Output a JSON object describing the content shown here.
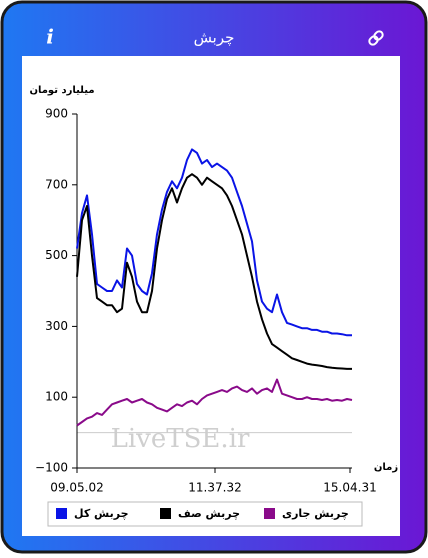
{
  "header": {
    "title": "چربش",
    "info": "i"
  },
  "watermark": "LiveTSE.ir",
  "chart_data": {
    "type": "line",
    "ylabel": "میلیارد تومان",
    "xlabel": "زمان",
    "xlim": [
      0,
      55
    ],
    "xticks": [
      {
        "value": 0,
        "label": "09.05.02"
      },
      {
        "value": 27.6,
        "label": "11.37.32"
      },
      {
        "value": 54.6,
        "label": "15.04.31"
      }
    ],
    "ylim": [
      -100,
      900
    ],
    "yticks": [
      {
        "value": -100,
        "label": "−100"
      },
      100,
      300,
      500,
      700,
      900
    ],
    "series": [
      {
        "name": "چربش کل",
        "color": "#0a14e6",
        "values": [
          520,
          620,
          670,
          560,
          420,
          410,
          400,
          400,
          430,
          410,
          520,
          500,
          420,
          400,
          390,
          450,
          560,
          630,
          680,
          710,
          690,
          720,
          770,
          800,
          790,
          760,
          770,
          750,
          760,
          750,
          740,
          720,
          680,
          640,
          590,
          540,
          430,
          370,
          350,
          340,
          390,
          340,
          310,
          305,
          300,
          295,
          295,
          290,
          290,
          285,
          285,
          280,
          280,
          278,
          275,
          275
        ]
      },
      {
        "name": "چربش صف",
        "color": "#000000",
        "values": [
          440,
          600,
          640,
          500,
          380,
          370,
          360,
          360,
          340,
          350,
          480,
          440,
          370,
          340,
          340,
          400,
          520,
          600,
          660,
          690,
          650,
          690,
          720,
          730,
          720,
          700,
          720,
          710,
          700,
          690,
          670,
          640,
          600,
          560,
          500,
          440,
          370,
          320,
          280,
          250,
          240,
          230,
          220,
          210,
          205,
          200,
          195,
          192,
          190,
          188,
          185,
          183,
          182,
          181,
          180,
          180
        ]
      },
      {
        "name": "چربش جاری",
        "color": "#8a0a8a",
        "values": [
          20,
          30,
          40,
          45,
          55,
          50,
          65,
          80,
          85,
          90,
          95,
          85,
          90,
          95,
          85,
          80,
          70,
          65,
          60,
          70,
          80,
          75,
          85,
          90,
          80,
          95,
          105,
          110,
          115,
          120,
          115,
          125,
          130,
          120,
          115,
          125,
          110,
          120,
          125,
          115,
          150,
          110,
          105,
          100,
          95,
          95,
          100,
          95,
          95,
          92,
          95,
          90,
          92,
          90,
          95,
          92
        ]
      }
    ]
  }
}
